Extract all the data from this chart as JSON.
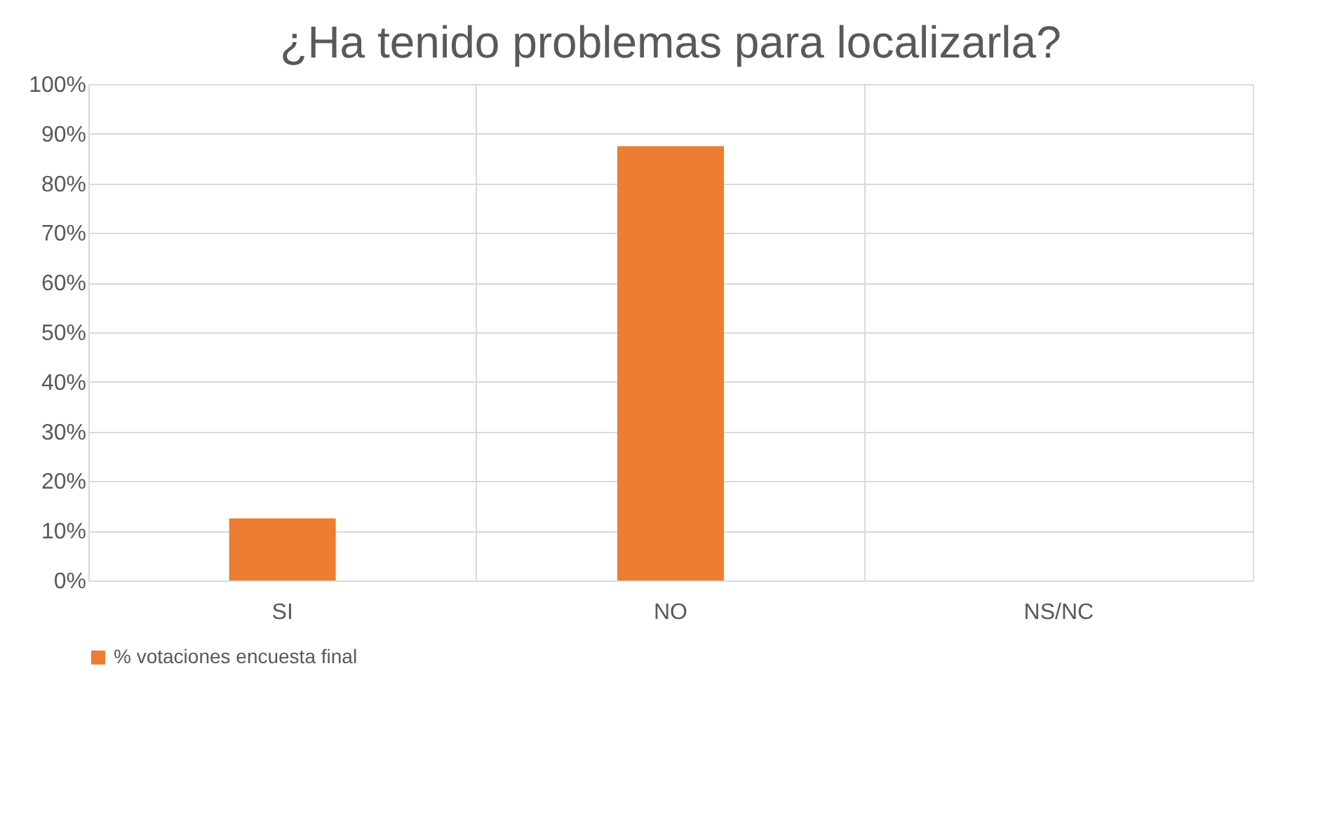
{
  "chart_data": {
    "type": "bar",
    "title": "¿Ha tenido problemas para localizarla?",
    "categories": [
      "SI",
      "NO",
      "NS/NC"
    ],
    "series": [
      {
        "name": "% votaciones encuesta final",
        "color": "#ed7d31",
        "values": [
          12.5,
          87.5,
          0
        ]
      }
    ],
    "ylim": [
      0,
      100
    ],
    "yticks": [
      {
        "value": 0,
        "label": "0%"
      },
      {
        "value": 10,
        "label": "10%"
      },
      {
        "value": 20,
        "label": "20%"
      },
      {
        "value": 30,
        "label": "30%"
      },
      {
        "value": 40,
        "label": "40%"
      },
      {
        "value": 50,
        "label": "50%"
      },
      {
        "value": 60,
        "label": "60%"
      },
      {
        "value": 70,
        "label": "70%"
      },
      {
        "value": 80,
        "label": "80%"
      },
      {
        "value": 90,
        "label": "90%"
      },
      {
        "value": 100,
        "label": "100%"
      }
    ],
    "grid": true,
    "legend": "bottom"
  }
}
